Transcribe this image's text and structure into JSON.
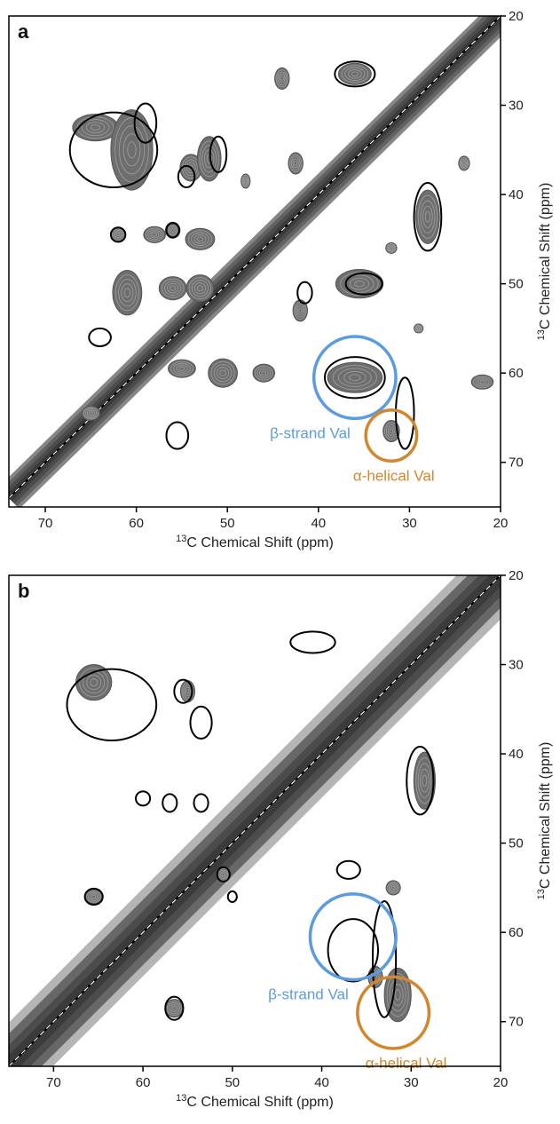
{
  "chart_data": [
    {
      "type": "contour",
      "panel": "a",
      "xlabel": "Chemical Shift (ppm)",
      "xlabel_sup": "13",
      "xlabel_elem": "C",
      "ylabel": "Chemical Shift (ppm)",
      "ylabel_sup": "13",
      "ylabel_elem": "C",
      "xlim": [
        74,
        20
      ],
      "ylim": [
        20,
        75
      ],
      "xticks": [
        70,
        60,
        50,
        40,
        30,
        20
      ],
      "yticks": [
        20,
        30,
        40,
        50,
        60,
        70
      ],
      "annotations": [
        {
          "text": "β-strand Val",
          "x": 36,
          "y": 60.5,
          "r": 4.5,
          "color": "#5b9be0"
        },
        {
          "text": "α-helical Val",
          "x": 32,
          "y": 67,
          "r": 2.8,
          "color": "#d4862e"
        }
      ],
      "gray_peaks": [
        {
          "x": 64.5,
          "y": 32.5,
          "rx": 2.5,
          "ry": 1.5
        },
        {
          "x": 60.5,
          "y": 35,
          "rx": 2.3,
          "ry": 4.5
        },
        {
          "x": 54,
          "y": 37,
          "rx": 1.2,
          "ry": 1.5
        },
        {
          "x": 52,
          "y": 36,
          "rx": 1.3,
          "ry": 2.5
        },
        {
          "x": 44,
          "y": 27,
          "rx": 0.8,
          "ry": 1.2
        },
        {
          "x": 36,
          "y": 26.5,
          "rx": 1.8,
          "ry": 1.2
        },
        {
          "x": 62,
          "y": 44.5,
          "rx": 0.8,
          "ry": 0.8
        },
        {
          "x": 58,
          "y": 44.5,
          "rx": 1.2,
          "ry": 0.9
        },
        {
          "x": 56,
          "y": 44,
          "rx": 0.8,
          "ry": 0.9
        },
        {
          "x": 53,
          "y": 45,
          "rx": 1.6,
          "ry": 1.2
        },
        {
          "x": 61,
          "y": 51,
          "rx": 1.6,
          "ry": 2.5
        },
        {
          "x": 56,
          "y": 50.5,
          "rx": 1.5,
          "ry": 1.3
        },
        {
          "x": 53,
          "y": 50.5,
          "rx": 1.5,
          "ry": 1.5
        },
        {
          "x": 42,
          "y": 53,
          "rx": 0.8,
          "ry": 1.2
        },
        {
          "x": 35.5,
          "y": 50,
          "rx": 2.6,
          "ry": 1.6
        },
        {
          "x": 32,
          "y": 46,
          "rx": 0.6,
          "ry": 0.6
        },
        {
          "x": 28,
          "y": 42.5,
          "rx": 1.3,
          "ry": 3.0
        },
        {
          "x": 36,
          "y": 60.5,
          "rx": 3.0,
          "ry": 1.7
        },
        {
          "x": 32,
          "y": 66.5,
          "rx": 0.9,
          "ry": 1.2
        },
        {
          "x": 50.5,
          "y": 60,
          "rx": 1.6,
          "ry": 1.6
        },
        {
          "x": 55,
          "y": 59.5,
          "rx": 1.5,
          "ry": 1.0
        },
        {
          "x": 46,
          "y": 60,
          "rx": 1.2,
          "ry": 1.0
        },
        {
          "x": 22,
          "y": 61,
          "rx": 1.2,
          "ry": 0.8
        },
        {
          "x": 24,
          "y": 36.5,
          "rx": 0.6,
          "ry": 0.8
        },
        {
          "x": 42.5,
          "y": 36.5,
          "rx": 0.8,
          "ry": 1.2
        },
        {
          "x": 48,
          "y": 38.5,
          "rx": 0.5,
          "ry": 0.8
        },
        {
          "x": 65,
          "y": 64.5,
          "rx": 1.0,
          "ry": 0.8
        },
        {
          "x": 29,
          "y": 55,
          "rx": 0.5,
          "ry": 0.5
        }
      ],
      "black_contours": [
        {
          "x": 62.5,
          "y": 35,
          "rx": 4.8,
          "ry": 4.2
        },
        {
          "x": 59,
          "y": 32,
          "rx": 1.2,
          "ry": 2.2
        },
        {
          "x": 36,
          "y": 26.5,
          "rx": 2.2,
          "ry": 1.4
        },
        {
          "x": 54.5,
          "y": 38,
          "rx": 0.9,
          "ry": 1.2
        },
        {
          "x": 51,
          "y": 35.5,
          "rx": 0.9,
          "ry": 2.0
        },
        {
          "x": 64,
          "y": 56,
          "rx": 1.2,
          "ry": 1.0
        },
        {
          "x": 55.5,
          "y": 67,
          "rx": 1.2,
          "ry": 1.5
        },
        {
          "x": 28,
          "y": 42.5,
          "rx": 1.5,
          "ry": 3.8
        },
        {
          "x": 36,
          "y": 60.5,
          "rx": 3.3,
          "ry": 2.3
        },
        {
          "x": 30.5,
          "y": 64.5,
          "rx": 1.0,
          "ry": 4.0
        },
        {
          "x": 35,
          "y": 50,
          "rx": 2.0,
          "ry": 1.2
        },
        {
          "x": 41.5,
          "y": 51,
          "rx": 0.8,
          "ry": 1.2
        },
        {
          "x": 62,
          "y": 44.5,
          "rx": 0.8,
          "ry": 0.8
        },
        {
          "x": 56,
          "y": 44,
          "rx": 0.7,
          "ry": 0.8
        }
      ]
    },
    {
      "type": "contour",
      "panel": "b",
      "xlabel": "Chemical Shift (ppm)",
      "xlabel_sup": "13",
      "xlabel_elem": "C",
      "ylabel": "Chemical Shift (ppm)",
      "ylabel_sup": "13",
      "ylabel_elem": "C",
      "xlim": [
        75,
        20
      ],
      "ylim": [
        20,
        75
      ],
      "xticks": [
        70,
        60,
        50,
        40,
        30,
        20
      ],
      "yticks": [
        20,
        30,
        40,
        50,
        60,
        70
      ],
      "annotations": [
        {
          "text": "β-strand Val",
          "x": 36.5,
          "y": 60.5,
          "r": 4.8,
          "color": "#5b9be0"
        },
        {
          "text": "α-helical Val",
          "x": 32,
          "y": 69,
          "r": 4.0,
          "color": "#d4862e"
        }
      ],
      "gray_peaks": [
        {
          "x": 65.5,
          "y": 32,
          "rx": 2.0,
          "ry": 2.0
        },
        {
          "x": 55,
          "y": 33,
          "rx": 0.8,
          "ry": 1.2
        },
        {
          "x": 28.5,
          "y": 43,
          "rx": 1.2,
          "ry": 3.2
        },
        {
          "x": 31.5,
          "y": 67,
          "rx": 1.5,
          "ry": 3.0
        },
        {
          "x": 34,
          "y": 65,
          "rx": 0.8,
          "ry": 1.2
        },
        {
          "x": 56.5,
          "y": 68.5,
          "rx": 1.0,
          "ry": 1.0
        },
        {
          "x": 51,
          "y": 53.5,
          "rx": 0.8,
          "ry": 0.8
        },
        {
          "x": 65.5,
          "y": 56,
          "rx": 1.0,
          "ry": 0.8
        },
        {
          "x": 32,
          "y": 55,
          "rx": 0.8,
          "ry": 0.8
        }
      ],
      "black_contours": [
        {
          "x": 63.5,
          "y": 34.5,
          "rx": 5.0,
          "ry": 4.0
        },
        {
          "x": 55.5,
          "y": 33,
          "rx": 1.0,
          "ry": 1.3
        },
        {
          "x": 53.5,
          "y": 36.5,
          "rx": 1.2,
          "ry": 1.8
        },
        {
          "x": 41,
          "y": 27.5,
          "rx": 2.5,
          "ry": 1.2
        },
        {
          "x": 29,
          "y": 43,
          "rx": 1.5,
          "ry": 3.8
        },
        {
          "x": 60,
          "y": 45,
          "rx": 0.8,
          "ry": 0.8
        },
        {
          "x": 57,
          "y": 45.5,
          "rx": 0.8,
          "ry": 1.0
        },
        {
          "x": 53.5,
          "y": 45.5,
          "rx": 0.8,
          "ry": 1.0
        },
        {
          "x": 65.5,
          "y": 56,
          "rx": 1.0,
          "ry": 0.9
        },
        {
          "x": 37,
          "y": 53,
          "rx": 1.3,
          "ry": 1.0
        },
        {
          "x": 36.5,
          "y": 62,
          "rx": 2.8,
          "ry": 3.5
        },
        {
          "x": 33,
          "y": 63,
          "rx": 1.3,
          "ry": 6.5
        },
        {
          "x": 56.5,
          "y": 68.5,
          "rx": 1.0,
          "ry": 1.3
        },
        {
          "x": 51,
          "y": 53.5,
          "rx": 0.7,
          "ry": 0.8
        },
        {
          "x": 50,
          "y": 56,
          "rx": 0.5,
          "ry": 0.6
        }
      ]
    }
  ]
}
